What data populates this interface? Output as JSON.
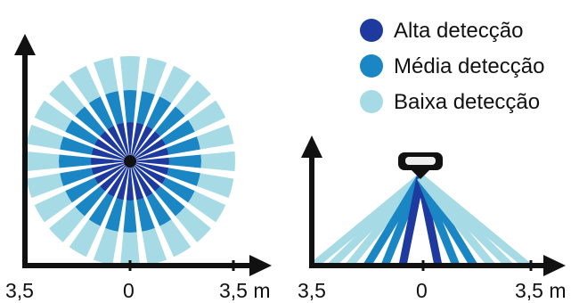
{
  "legend": [
    {
      "label": "Alta detecção",
      "color": "#1e3a9e"
    },
    {
      "label": "Média detecção",
      "color": "#1a86c4"
    },
    {
      "label": "Baixa detecção",
      "color": "#a6dbe6"
    }
  ],
  "top_view": {
    "x_labels": {
      "left": "3,5",
      "center": "0",
      "right": "3,5 m"
    },
    "ring_colors": [
      "#1e3a9e",
      "#1a86c4",
      "#a6dbe6"
    ],
    "sectors": 24
  },
  "side_view": {
    "x_labels": {
      "left": "3,5",
      "center": "0",
      "right": "3,5 m"
    },
    "beam_colors": [
      "#a6dbe6",
      "#1a86c4",
      "#1e3a9e"
    ]
  },
  "colors": {
    "axis": "#111111",
    "sensor_body": "#111111",
    "sensor_lens": "#eeeeee"
  }
}
